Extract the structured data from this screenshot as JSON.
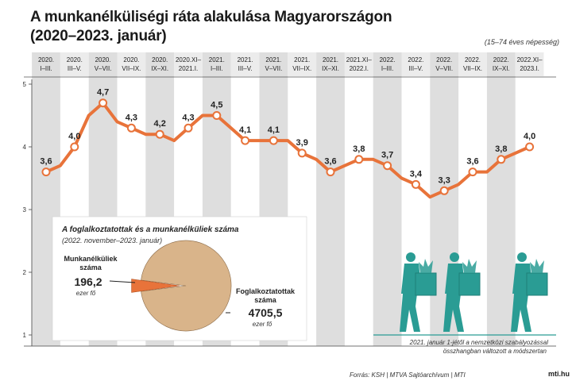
{
  "title_line1": "A munkanélküliségi ráta alakulása Magyarországon",
  "title_line2": "(2020–2023. január)",
  "population_note": "(15–74 éves népesség)",
  "chart_data": {
    "type": "line",
    "title": "A munkanélküliségi ráta alakulása Magyarországon (2020–2023. január)",
    "ylabel": "",
    "ylim": [
      1,
      5
    ],
    "yticks": [
      "5",
      "4",
      "3",
      "2",
      "1"
    ],
    "categories": [
      [
        "2020.",
        "I–III."
      ],
      [
        "2020.",
        "III–V."
      ],
      [
        "2020.",
        "V–VII."
      ],
      [
        "2020.",
        "VII–IX."
      ],
      [
        "2020.",
        "IX–XI."
      ],
      [
        "2020.XI–",
        "2021.I."
      ],
      [
        "2021.",
        "I–III."
      ],
      [
        "2021.",
        "III–V."
      ],
      [
        "2021.",
        "V–VII."
      ],
      [
        "2021.",
        "VII–IX."
      ],
      [
        "2021.",
        "IX–XI."
      ],
      [
        "2021.XI–",
        "2022.I."
      ],
      [
        "2022.",
        "I–III."
      ],
      [
        "2022.",
        "III–V."
      ],
      [
        "2022.",
        "V–VII."
      ],
      [
        "2022.",
        "VII–IX."
      ],
      [
        "2022.",
        "IX–XI."
      ],
      [
        "2022.XI–",
        "2023.I."
      ]
    ],
    "series": [
      {
        "name": "Munkanélküliségi ráta (%)",
        "x": [
          0,
          0.5,
          1,
          1.5,
          2,
          2.5,
          3,
          3.5,
          4,
          4.5,
          5,
          5.5,
          6,
          6.5,
          7,
          7.5,
          8,
          8.5,
          9,
          9.5,
          10,
          10.5,
          11,
          11.5,
          12,
          12.5,
          13,
          13.5,
          14,
          14.5,
          15,
          15.5,
          16,
          16.5,
          17
        ],
        "values": [
          3.6,
          3.7,
          4.0,
          4.5,
          4.7,
          4.4,
          4.3,
          4.2,
          4.2,
          4.1,
          4.3,
          4.5,
          4.5,
          4.3,
          4.1,
          4.1,
          4.1,
          4.1,
          3.9,
          3.8,
          3.6,
          3.7,
          3.8,
          3.8,
          3.7,
          3.5,
          3.4,
          3.2,
          3.3,
          3.4,
          3.6,
          3.6,
          3.8,
          3.9,
          4.0
        ]
      }
    ],
    "data_labels": [
      "3,6",
      "4,0",
      "4,7",
      "4,3",
      "4,2",
      "4,3",
      "4,5",
      "4,1",
      "4,1",
      "3,9",
      "3,6",
      "3,8",
      "3,7",
      "3,4",
      "3,3",
      "3,6",
      "3,8",
      "4,0"
    ],
    "line_color": "#e8733a",
    "band_color": "#dedede"
  },
  "inset": {
    "title": "A foglalkoztatottak és a munkanélküliek száma",
    "subtitle": "(2022. november–2023. január)",
    "unemployed_label_1": "Munkanélküliek",
    "unemployed_label_2": "száma",
    "unemployed_value": "196,2",
    "unemployed_unit": "ezer fő",
    "employed_label_1": "Foglalkoztatottak",
    "employed_label_2": "száma",
    "employed_value": "4705,5",
    "employed_unit": "ezer fő",
    "pie": {
      "unemployed": 196.2,
      "employed": 4705.5
    },
    "colors": {
      "employed": "#d9b48a",
      "unemployed": "#e8733a"
    }
  },
  "footnote_line1": "2021. január 1-jétől a nemzetközi szabályozással",
  "footnote_line2": "összhangban változott a módszertan",
  "source": "Forrás: KSH | MTVA Sajtóarchívum | MTI",
  "logo_right": "mti.hu",
  "figure_color": "#2a9c94"
}
